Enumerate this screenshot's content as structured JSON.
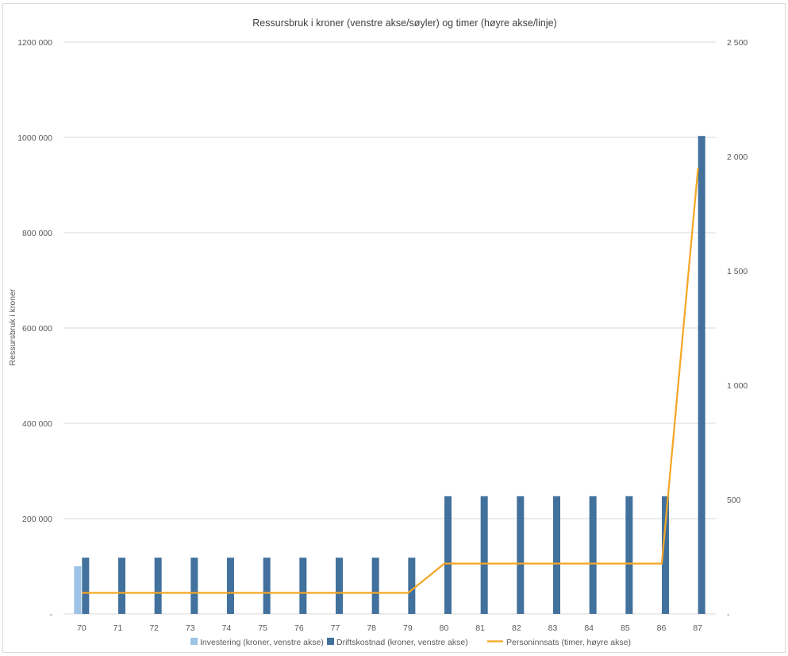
{
  "chart_data": {
    "type": "bar",
    "title": "Ressursbruk i kroner (venstre akse/søyler) og timer (høyre akse/linje)",
    "ylabel": "Ressursbruk i kroner",
    "y2label": "",
    "categories": [
      "70",
      "71",
      "72",
      "73",
      "74",
      "75",
      "76",
      "77",
      "78",
      "79",
      "80",
      "81",
      "82",
      "83",
      "84",
      "85",
      "86",
      "87"
    ],
    "ylim": [
      0,
      1200000
    ],
    "y2lim": [
      0,
      2500
    ],
    "y_ticks": [
      {
        "value": 0,
        "label": "-"
      },
      {
        "value": 200000,
        "label": "200 000"
      },
      {
        "value": 400000,
        "label": "400 000"
      },
      {
        "value": 600000,
        "label": "600 000"
      },
      {
        "value": 800000,
        "label": "800 000"
      },
      {
        "value": 1000000,
        "label": "1000 000"
      },
      {
        "value": 1200000,
        "label": "1200 000"
      }
    ],
    "y2_ticks": [
      {
        "value": 0,
        "label": "-"
      },
      {
        "value": 500,
        "label": "500"
      },
      {
        "value": 1000,
        "label": "1 000"
      },
      {
        "value": 1500,
        "label": "1 500"
      },
      {
        "value": 2000,
        "label": "2 000"
      },
      {
        "value": 2500,
        "label": "2 500"
      }
    ],
    "grid": true,
    "legend_position": "bottom",
    "series": [
      {
        "name": "Investering (kroner, venstre akse)",
        "kind": "bar",
        "axis": "left",
        "color": "#9dc3e6",
        "values": [
          100000,
          0,
          0,
          0,
          0,
          0,
          0,
          0,
          0,
          0,
          0,
          0,
          0,
          0,
          0,
          0,
          0,
          0
        ]
      },
      {
        "name": "Driftskostnad (kroner, venstre akse)",
        "kind": "bar",
        "axis": "left",
        "color": "#41719c",
        "values": [
          118000,
          118000,
          118000,
          118000,
          118000,
          118000,
          118000,
          118000,
          118000,
          118000,
          247000,
          247000,
          247000,
          247000,
          247000,
          247000,
          247000,
          1003000
        ]
      },
      {
        "name": "Personinnsats (timer, høyre akse)",
        "kind": "line",
        "axis": "right",
        "color": "#f5a623",
        "values": [
          92,
          92,
          92,
          92,
          92,
          92,
          92,
          92,
          92,
          92,
          220,
          220,
          220,
          220,
          220,
          220,
          220,
          1950
        ]
      }
    ]
  }
}
